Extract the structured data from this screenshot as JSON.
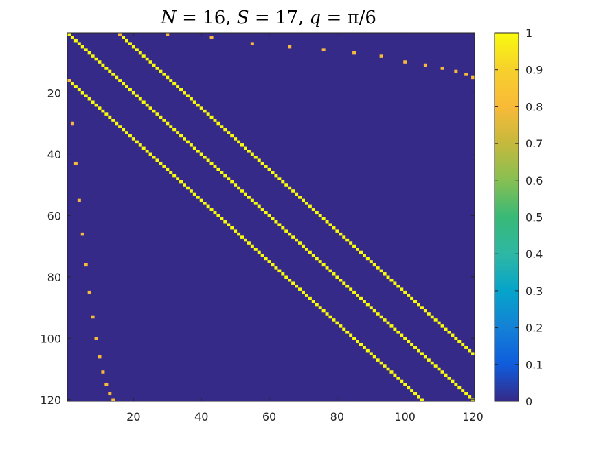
{
  "chart_data": {
    "type": "heatmap",
    "title_parts": [
      "N",
      " = 16, ",
      "S",
      " = 17, ",
      "q",
      " = π/6"
    ],
    "matrix_size": 120,
    "xlim": [
      0.5,
      120.5
    ],
    "ylim": [
      0.5,
      120.5
    ],
    "x_ticks": [
      20,
      40,
      60,
      80,
      100,
      120
    ],
    "y_ticks": [
      20,
      40,
      60,
      80,
      100,
      120
    ],
    "x_tick_labels": [
      "20",
      "40",
      "60",
      "80",
      "100",
      "120"
    ],
    "y_tick_labels": [
      "20",
      "40",
      "60",
      "80",
      "100",
      "120"
    ],
    "background_value": 0,
    "bands": [
      {
        "name": "main-diagonal",
        "offset": 0,
        "value": 1
      },
      {
        "name": "upper-band",
        "offset": 15,
        "value": 1
      },
      {
        "name": "lower-band",
        "offset": -15,
        "value": 1
      }
    ],
    "boundary_points": [
      {
        "row": 1,
        "col": 16,
        "value": 0.88
      },
      {
        "row": 1,
        "col": 30,
        "value": 0.88
      },
      {
        "row": 2,
        "col": 43,
        "value": 0.88
      },
      {
        "row": 4,
        "col": 55,
        "value": 0.88
      },
      {
        "row": 5,
        "col": 66,
        "value": 0.88
      },
      {
        "row": 6,
        "col": 76,
        "value": 0.88
      },
      {
        "row": 7,
        "col": 85,
        "value": 0.88
      },
      {
        "row": 8,
        "col": 93,
        "value": 0.88
      },
      {
        "row": 10,
        "col": 100,
        "value": 0.88
      },
      {
        "row": 11,
        "col": 106,
        "value": 0.88
      },
      {
        "row": 12,
        "col": 111,
        "value": 0.88
      },
      {
        "row": 13,
        "col": 115,
        "value": 0.88
      },
      {
        "row": 14,
        "col": 118,
        "value": 0.88
      },
      {
        "row": 15,
        "col": 120,
        "value": 0.88
      },
      {
        "row": 16,
        "col": 1,
        "value": 0.88
      },
      {
        "row": 30,
        "col": 2,
        "value": 0.88
      },
      {
        "row": 43,
        "col": 3,
        "value": 0.88
      },
      {
        "row": 55,
        "col": 4,
        "value": 0.88
      },
      {
        "row": 66,
        "col": 5,
        "value": 0.88
      },
      {
        "row": 76,
        "col": 6,
        "value": 0.88
      },
      {
        "row": 85,
        "col": 7,
        "value": 0.88
      },
      {
        "row": 93,
        "col": 8,
        "value": 0.88
      },
      {
        "row": 100,
        "col": 9,
        "value": 0.88
      },
      {
        "row": 106,
        "col": 10,
        "value": 0.88
      },
      {
        "row": 111,
        "col": 11,
        "value": 0.88
      },
      {
        "row": 115,
        "col": 12,
        "value": 0.88
      },
      {
        "row": 118,
        "col": 13,
        "value": 0.88
      },
      {
        "row": 120,
        "col": 14,
        "value": 0.88
      }
    ],
    "colorbar": {
      "colormap": "parula",
      "clim": [
        0,
        1
      ],
      "ticks": [
        0,
        0.1,
        0.2,
        0.3,
        0.4,
        0.5,
        0.6,
        0.7,
        0.8,
        0.9,
        1
      ],
      "tick_labels": [
        "0",
        "0.1",
        "0.2",
        "0.3",
        "0.4",
        "0.5",
        "0.6",
        "0.7",
        "0.8",
        "0.9",
        "1"
      ]
    },
    "colors": {
      "background": "#352a87",
      "high": "#f9fb0e",
      "boundary": "#f7ba3d",
      "axis_box": "#262626"
    }
  }
}
